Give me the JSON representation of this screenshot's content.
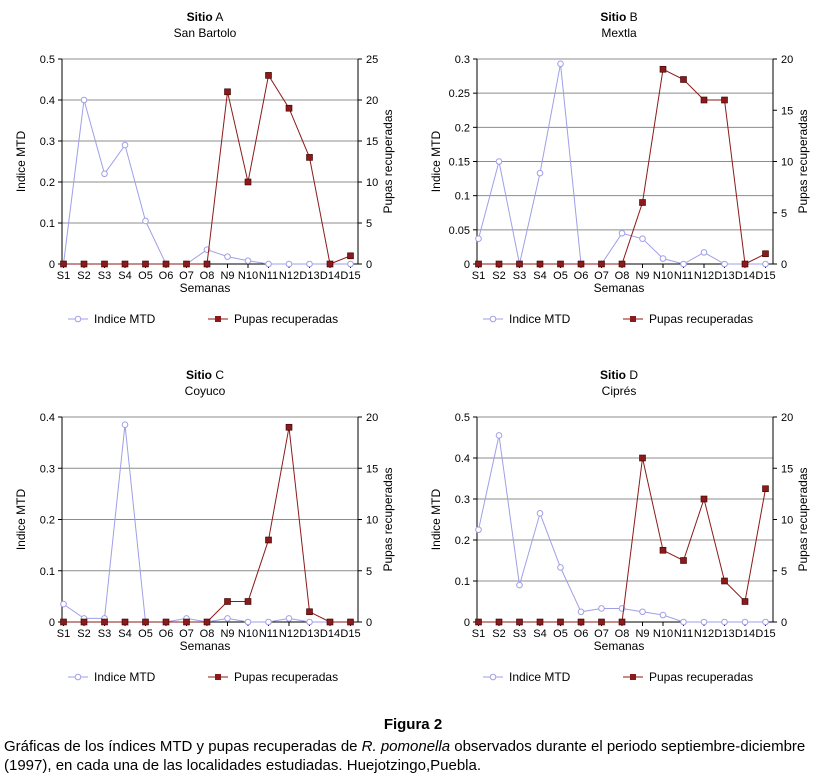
{
  "chart_data": [
    {
      "type": "line",
      "title_bold": "Sitio",
      "title_letter": "A",
      "subtitle": "San Bartolo",
      "xlabel": "Semanas",
      "ylabel_left": "Indice MTD",
      "ylabel_right": "Pupas recuperadas",
      "categories": [
        "S1",
        "S2",
        "S3",
        "S4",
        "O5",
        "O6",
        "O7",
        "O8",
        "N9",
        "N10",
        "N11",
        "N12",
        "D13",
        "D14",
        "D15"
      ],
      "left_ylim": [
        0,
        0.5
      ],
      "left_ticks": [
        "0",
        "0.1",
        "0.2",
        "0.3",
        "0.4",
        "0.5"
      ],
      "right_ylim": [
        0,
        25
      ],
      "right_ticks": [
        "0",
        "5",
        "10",
        "15",
        "20",
        "25"
      ],
      "series": [
        {
          "name": "Indice MTD",
          "axis": "left",
          "color": "#9f9fe8",
          "marker": "circle",
          "values": [
            0,
            0.4,
            0.22,
            0.29,
            0.105,
            0,
            0,
            0.035,
            0.018,
            0.008,
            0,
            0,
            0,
            0,
            0
          ]
        },
        {
          "name": "Pupas recuperadas",
          "axis": "right",
          "color": "#8b1a1a",
          "marker": "square",
          "values": [
            0,
            0,
            0,
            0,
            0,
            0,
            0,
            0,
            21,
            10,
            23,
            19,
            13,
            0,
            1
          ]
        }
      ]
    },
    {
      "type": "line",
      "title_bold": "Sitio",
      "title_letter": "B",
      "subtitle": "Mextla",
      "xlabel": "Semanas",
      "ylabel_left": "Indice MTD",
      "ylabel_right": "Pupas recuperadas",
      "categories": [
        "S1",
        "S2",
        "S3",
        "S4",
        "O5",
        "O6",
        "O7",
        "O8",
        "N9",
        "N10",
        "N11",
        "N12",
        "D13",
        "D14",
        "D15"
      ],
      "left_ylim": [
        0,
        0.3
      ],
      "left_ticks": [
        "0",
        "0.05",
        "0.1",
        "0.15",
        "0.2",
        "0.25",
        "0.3"
      ],
      "right_ylim": [
        0,
        20
      ],
      "right_ticks": [
        "0",
        "5",
        "10",
        "15",
        "20"
      ],
      "series": [
        {
          "name": "Indice MTD",
          "axis": "left",
          "color": "#9f9fe8",
          "marker": "circle",
          "values": [
            0.037,
            0.15,
            0,
            0.133,
            0.293,
            0,
            0,
            0.045,
            0.037,
            0.008,
            0,
            0.017,
            0,
            0,
            0
          ]
        },
        {
          "name": "Pupas recuperadas",
          "axis": "right",
          "color": "#8b1a1a",
          "marker": "square",
          "values": [
            0,
            0,
            0,
            0,
            0,
            0,
            0,
            0,
            6,
            19,
            18,
            16,
            16,
            0,
            1
          ]
        }
      ]
    },
    {
      "type": "line",
      "title_bold": "Sitio",
      "title_letter": "C",
      "subtitle": "Coyuco",
      "xlabel": "Semanas",
      "ylabel_left": "Indice MTD",
      "ylabel_right": "Pupas recuperadas",
      "categories": [
        "S1",
        "S2",
        "S3",
        "S4",
        "O5",
        "O6",
        "O7",
        "O8",
        "N9",
        "N10",
        "N11",
        "N12",
        "D13",
        "D14",
        "D15"
      ],
      "left_ylim": [
        0,
        0.4
      ],
      "left_ticks": [
        "0",
        "0.1",
        "0.2",
        "0.3",
        "0.4"
      ],
      "right_ylim": [
        0,
        20
      ],
      "right_ticks": [
        "0",
        "5",
        "10",
        "15",
        "20"
      ],
      "series": [
        {
          "name": "Indice MTD",
          "axis": "left",
          "color": "#9f9fe8",
          "marker": "circle",
          "values": [
            0.035,
            0.007,
            0.007,
            0.385,
            0,
            0,
            0.007,
            0,
            0.007,
            0,
            0,
            0.007,
            0,
            0,
            0
          ]
        },
        {
          "name": "Pupas recuperadas",
          "axis": "right",
          "color": "#8b1a1a",
          "marker": "square",
          "values": [
            0,
            0,
            0,
            0,
            0,
            0,
            0,
            0,
            2,
            2,
            8,
            19,
            1,
            0,
            0
          ]
        }
      ]
    },
    {
      "type": "line",
      "title_bold": "Sitio",
      "title_letter": "D",
      "subtitle": "Ciprés",
      "xlabel": "Semanas",
      "ylabel_left": "Indice MTD",
      "ylabel_right": "Pupas recuperadas",
      "categories": [
        "S1",
        "S2",
        "S3",
        "S4",
        "O5",
        "O6",
        "O7",
        "O8",
        "N9",
        "N10",
        "N11",
        "N12",
        "D13",
        "D14",
        "D15"
      ],
      "left_ylim": [
        0,
        0.5
      ],
      "left_ticks": [
        "0",
        "0.1",
        "0.2",
        "0.3",
        "0.4",
        "0.5"
      ],
      "right_ylim": [
        0,
        20
      ],
      "right_ticks": [
        "0",
        "5",
        "10",
        "15",
        "20"
      ],
      "series": [
        {
          "name": "Indice MTD",
          "axis": "left",
          "color": "#9f9fe8",
          "marker": "circle",
          "values": [
            0.225,
            0.455,
            0.09,
            0.265,
            0.133,
            0.025,
            0.033,
            0.033,
            0.025,
            0.017,
            0,
            0,
            0,
            0,
            0
          ]
        },
        {
          "name": "Pupas recuperadas",
          "axis": "right",
          "color": "#8b1a1a",
          "marker": "square",
          "values": [
            0,
            0,
            0,
            0,
            0,
            0,
            0,
            0,
            16,
            7,
            6,
            12,
            4,
            2,
            13
          ]
        }
      ]
    }
  ],
  "caption": {
    "title": "Figura 2",
    "text_before": "Gráficas de los índices MTD y pupas recuperadas de ",
    "species": "R. pomonella",
    "text_after": " observados durante el periodo septiembre-diciembre (1997), en cada una de las localidades estudiadas. Huejotzingo,Puebla."
  }
}
